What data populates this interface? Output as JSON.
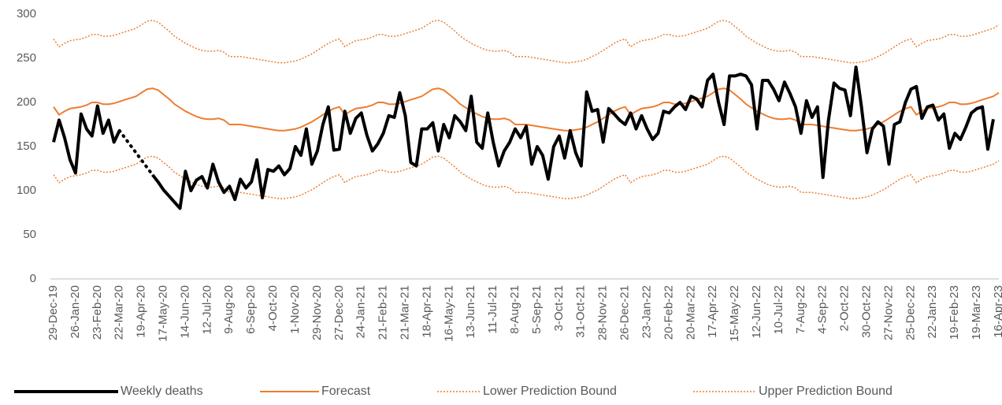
{
  "chart_data": {
    "type": "line",
    "categories": [
      "29-Dec-19",
      null,
      null,
      null,
      "26-Jan-20",
      null,
      null,
      null,
      "23-Feb-20",
      null,
      null,
      null,
      "22-Mar-20",
      null,
      null,
      null,
      "19-Apr-20",
      null,
      null,
      null,
      "17-May-20",
      null,
      null,
      null,
      "14-Jun-20",
      null,
      null,
      null,
      "12-Jul-20",
      null,
      null,
      null,
      "9-Aug-20",
      null,
      null,
      null,
      "6-Sep-20",
      null,
      null,
      null,
      "4-Oct-20",
      null,
      null,
      null,
      "1-Nov-20",
      null,
      null,
      null,
      "29-Nov-20",
      null,
      null,
      null,
      "27-Dec-20",
      null,
      null,
      null,
      "24-Jan-21",
      null,
      null,
      null,
      "21-Feb-21",
      null,
      null,
      null,
      "21-Mar-21",
      null,
      null,
      null,
      "18-Apr-21",
      null,
      null,
      null,
      "16-May-21",
      null,
      null,
      null,
      "13-Jun-21",
      null,
      null,
      null,
      "11-Jul-21",
      null,
      null,
      null,
      "8-Aug-21",
      null,
      null,
      null,
      "5-Sep-21",
      null,
      null,
      null,
      "3-Oct-21",
      null,
      null,
      null,
      "31-Oct-21",
      null,
      null,
      null,
      "28-Nov-21",
      null,
      null,
      null,
      "26-Dec-21",
      null,
      null,
      null,
      "23-Jan-22",
      null,
      null,
      null,
      "20-Feb-22",
      null,
      null,
      null,
      "20-Mar-22",
      null,
      null,
      null,
      "17-Apr-22",
      null,
      null,
      null,
      "15-May-22",
      null,
      null,
      null,
      "12-Jun-22",
      null,
      null,
      null,
      "10-Jul-22",
      null,
      null,
      null,
      "7-Aug-22",
      null,
      null,
      null,
      "4-Sep-22",
      null,
      null,
      null,
      "2-Oct-22",
      null,
      null,
      null,
      "30-Oct-22",
      null,
      null,
      null,
      "27-Nov-22",
      null,
      null,
      null,
      "25-Dec-22",
      null,
      null,
      null,
      "22-Jan-23",
      null,
      null,
      null,
      "19-Feb-23",
      null,
      null,
      null,
      "19-Mar-23",
      null,
      null,
      null,
      "16-Apr-23"
    ],
    "series": [
      {
        "name": "Weekly deaths",
        "color": "#000000",
        "values": [
          155,
          180,
          160,
          135,
          120,
          187,
          170,
          162,
          196,
          165,
          180,
          155,
          168,
          null,
          null,
          null,
          null,
          null,
          118,
          110,
          101,
          94,
          87,
          80,
          122,
          100,
          112,
          116,
          103,
          130,
          110,
          98,
          105,
          90,
          113,
          103,
          110,
          135,
          92,
          124,
          122,
          128,
          118,
          125,
          150,
          140,
          170,
          130,
          145,
          175,
          195,
          146,
          147,
          190,
          165,
          182,
          188,
          163,
          145,
          153,
          165,
          185,
          183,
          211,
          185,
          132,
          128,
          170,
          170,
          177,
          145,
          175,
          160,
          185,
          178,
          168,
          207,
          155,
          148,
          188,
          155,
          128,
          145,
          155,
          170,
          160,
          173,
          130,
          150,
          140,
          113,
          150,
          162,
          137,
          168,
          143,
          128,
          212,
          190,
          192,
          155,
          193,
          187,
          180,
          175,
          188,
          170,
          185,
          170,
          158,
          165,
          190,
          188,
          195,
          200,
          192,
          207,
          204,
          195,
          225,
          232,
          200,
          175,
          230,
          230,
          232,
          230,
          220,
          170,
          225,
          225,
          215,
          202,
          223,
          210,
          195,
          165,
          202,
          183,
          195,
          115,
          180,
          222,
          216,
          214,
          185,
          240,
          195,
          143,
          170,
          178,
          173,
          130,
          175,
          178,
          200,
          215,
          218,
          182,
          195,
          197,
          180,
          187,
          148,
          165,
          158,
          172,
          188,
          193,
          195,
          147,
          181,
          null
        ]
      },
      {
        "name": "Forecast",
        "color": "#ED7D31",
        "values": [
          195,
          186,
          190,
          193,
          194,
          195,
          197,
          200,
          200,
          198,
          198,
          199,
          201,
          203,
          205,
          207,
          211,
          215,
          216,
          214,
          209,
          204,
          198,
          194,
          190,
          187,
          184,
          182,
          181,
          181,
          182,
          180,
          175,
          175,
          175,
          174,
          173,
          172,
          171,
          170,
          169,
          168,
          168,
          169,
          170,
          172,
          175,
          178,
          182,
          186,
          190,
          193,
          195,
          186,
          190,
          193,
          194,
          195,
          197,
          200,
          200,
          198,
          198,
          199,
          201,
          203,
          205,
          207,
          211,
          215,
          216,
          214,
          209,
          204,
          198,
          194,
          190,
          187,
          184,
          182,
          181,
          181,
          182,
          180,
          175,
          175,
          175,
          174,
          173,
          172,
          171,
          170,
          169,
          168,
          168,
          169,
          170,
          172,
          175,
          178,
          182,
          186,
          190,
          193,
          195,
          186,
          190,
          193,
          194,
          195,
          197,
          200,
          200,
          198,
          198,
          199,
          201,
          203,
          205,
          207,
          211,
          215,
          216,
          214,
          209,
          204,
          198,
          194,
          190,
          187,
          184,
          182,
          181,
          181,
          182,
          180,
          175,
          175,
          175,
          174,
          173,
          172,
          171,
          170,
          169,
          168,
          168,
          169,
          170,
          172,
          175,
          178,
          182,
          186,
          190,
          193,
          195,
          186,
          190,
          193,
          194,
          195,
          197,
          200,
          200,
          198,
          198,
          199,
          201,
          203,
          205,
          207,
          211
        ]
      },
      {
        "name": "Lower Prediction Bound",
        "color": "#ED7D31",
        "values": [
          118,
          109,
          113,
          116,
          117,
          118,
          120,
          123,
          123,
          121,
          121,
          122,
          124,
          126,
          128,
          130,
          134,
          138,
          139,
          137,
          132,
          127,
          121,
          117,
          113,
          110,
          107,
          105,
          104,
          104,
          105,
          103,
          98,
          98,
          98,
          97,
          96,
          95,
          94,
          93,
          92,
          91,
          91,
          92,
          93,
          95,
          98,
          101,
          105,
          109,
          113,
          116,
          118,
          109,
          113,
          116,
          117,
          118,
          120,
          123,
          123,
          121,
          121,
          122,
          124,
          126,
          128,
          130,
          134,
          138,
          139,
          137,
          132,
          127,
          121,
          117,
          113,
          110,
          107,
          105,
          104,
          104,
          105,
          103,
          98,
          98,
          98,
          97,
          96,
          95,
          94,
          93,
          92,
          91,
          91,
          92,
          93,
          95,
          98,
          101,
          105,
          109,
          113,
          116,
          118,
          109,
          113,
          116,
          117,
          118,
          120,
          123,
          123,
          121,
          121,
          122,
          124,
          126,
          128,
          130,
          134,
          138,
          139,
          137,
          132,
          127,
          121,
          117,
          113,
          110,
          107,
          105,
          104,
          104,
          105,
          103,
          98,
          98,
          98,
          97,
          96,
          95,
          94,
          93,
          92,
          91,
          91,
          92,
          93,
          95,
          98,
          101,
          105,
          109,
          113,
          116,
          118,
          109,
          113,
          116,
          117,
          118,
          120,
          123,
          123,
          121,
          121,
          122,
          124,
          126,
          128,
          130,
          134
        ]
      },
      {
        "name": "Upper Prediction Bound",
        "color": "#ED7D31",
        "values": [
          272,
          263,
          267,
          270,
          271,
          272,
          274,
          277,
          277,
          275,
          275,
          276,
          278,
          280,
          282,
          284,
          288,
          292,
          293,
          291,
          286,
          281,
          275,
          271,
          267,
          264,
          261,
          259,
          258,
          258,
          259,
          257,
          252,
          252,
          252,
          251,
          250,
          249,
          248,
          247,
          246,
          245,
          245,
          246,
          247,
          249,
          252,
          255,
          259,
          263,
          267,
          270,
          272,
          263,
          267,
          270,
          271,
          272,
          274,
          277,
          277,
          275,
          275,
          276,
          278,
          280,
          282,
          284,
          288,
          292,
          293,
          291,
          286,
          281,
          275,
          271,
          267,
          264,
          261,
          259,
          258,
          258,
          259,
          257,
          252,
          252,
          252,
          251,
          250,
          249,
          248,
          247,
          246,
          245,
          245,
          246,
          247,
          249,
          252,
          255,
          259,
          263,
          267,
          270,
          272,
          263,
          267,
          270,
          271,
          272,
          274,
          277,
          277,
          275,
          275,
          276,
          278,
          280,
          282,
          284,
          288,
          292,
          293,
          291,
          286,
          281,
          275,
          271,
          267,
          264,
          261,
          259,
          258,
          258,
          259,
          257,
          252,
          252,
          252,
          251,
          250,
          249,
          248,
          247,
          246,
          245,
          245,
          246,
          247,
          249,
          252,
          255,
          259,
          263,
          267,
          270,
          272,
          263,
          267,
          270,
          271,
          272,
          274,
          277,
          277,
          275,
          275,
          276,
          278,
          280,
          282,
          284,
          288
        ]
      }
    ],
    "ylim": [
      0,
      300
    ],
    "yticks": [
      0,
      50,
      100,
      150,
      200,
      250,
      300
    ],
    "grid": false,
    "legend": "bottom"
  }
}
